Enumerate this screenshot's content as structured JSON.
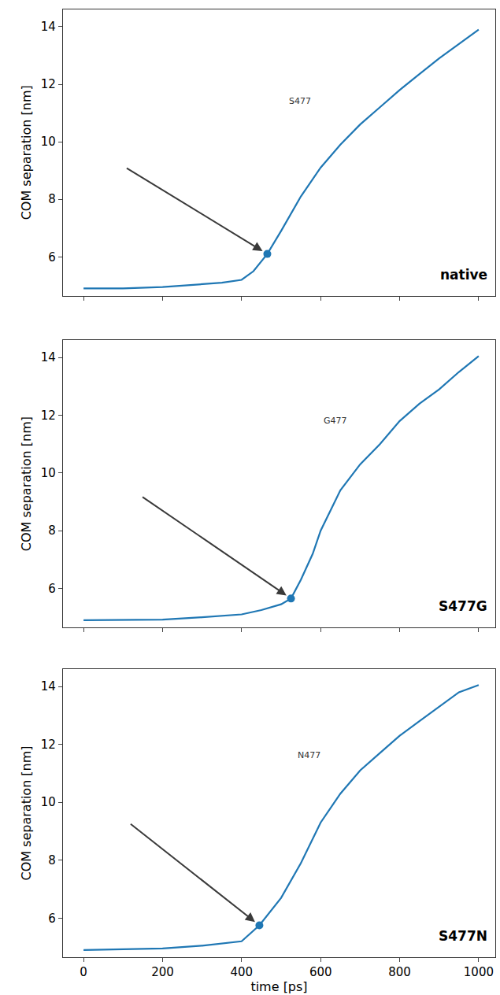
{
  "chart_data": [
    {
      "type": "line",
      "title": "native",
      "color": "#1f77b4",
      "x": [
        0,
        100,
        200,
        300,
        350,
        400,
        430,
        465,
        500,
        550,
        600,
        650,
        700,
        750,
        800,
        850,
        900,
        950,
        1000
      ],
      "values": [
        4.9,
        4.9,
        4.95,
        5.05,
        5.1,
        5.2,
        5.5,
        6.1,
        6.9,
        8.1,
        9.1,
        9.9,
        10.6,
        11.2,
        11.8,
        12.35,
        12.9,
        13.4,
        13.9
      ],
      "highlight": {
        "x": 465,
        "y": 6.1
      },
      "annotation": "S477",
      "y_label": "COM separation [nm]",
      "xlim": [
        -52,
        1042
      ],
      "ylim": [
        4.65,
        14.6
      ],
      "xticks": [
        0,
        200,
        400,
        600,
        800,
        1000
      ],
      "yticks": [
        6,
        8,
        10,
        12,
        14
      ],
      "grid": false
    },
    {
      "type": "line",
      "title": "S477G",
      "color": "#1f77b4",
      "x": [
        0,
        200,
        300,
        400,
        450,
        500,
        525,
        550,
        580,
        600,
        650,
        700,
        750,
        800,
        850,
        900,
        950,
        1000
      ],
      "values": [
        4.9,
        4.92,
        5.0,
        5.1,
        5.25,
        5.45,
        5.65,
        6.3,
        7.2,
        8.0,
        9.4,
        10.3,
        11.0,
        11.8,
        12.4,
        12.9,
        13.5,
        14.05
      ],
      "highlight": {
        "x": 525,
        "y": 5.65
      },
      "annotation": "G477",
      "y_label": "COM separation [nm]",
      "xlim": [
        -52,
        1042
      ],
      "ylim": [
        4.65,
        14.6
      ],
      "xticks": [
        0,
        200,
        400,
        600,
        800,
        1000
      ],
      "yticks": [
        6,
        8,
        10,
        12,
        14
      ],
      "grid": false
    },
    {
      "type": "line",
      "title": "S477N",
      "color": "#1f77b4",
      "x": [
        0,
        200,
        300,
        400,
        445,
        500,
        550,
        600,
        650,
        700,
        750,
        800,
        850,
        900,
        950,
        1000
      ],
      "values": [
        4.9,
        4.95,
        5.05,
        5.2,
        5.75,
        6.7,
        7.9,
        9.3,
        10.3,
        11.1,
        11.7,
        12.3,
        12.8,
        13.3,
        13.8,
        14.05
      ],
      "highlight": {
        "x": 445,
        "y": 5.75
      },
      "annotation": "N477",
      "x_label": "time [ps]",
      "y_label": "COM separation [nm]",
      "xlim": [
        -52,
        1042
      ],
      "ylim": [
        4.65,
        14.6
      ],
      "xticks": [
        0,
        200,
        400,
        600,
        800,
        1000
      ],
      "yticks": [
        6,
        8,
        10,
        12,
        14
      ],
      "grid": false
    }
  ]
}
